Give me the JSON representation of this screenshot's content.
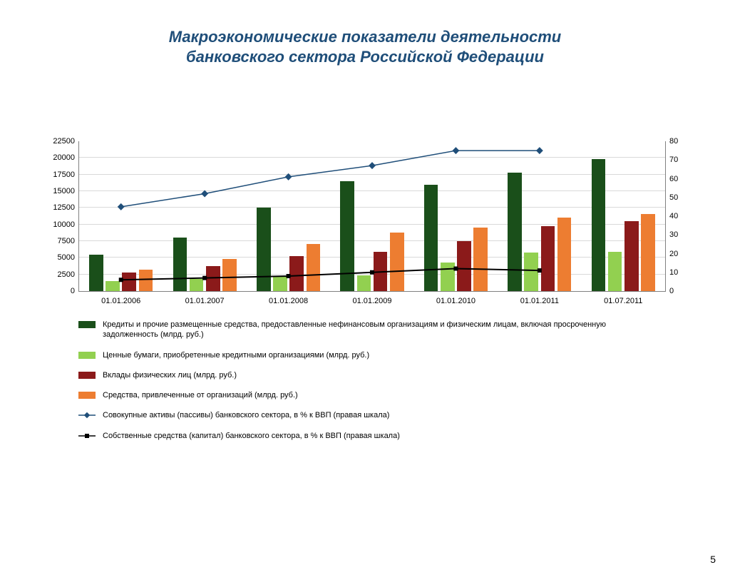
{
  "title_line1": "Макроэкономические показатели деятельности",
  "title_line2": "банковского сектора Российской Федерации",
  "title_color": "#1f4e79",
  "title_fontsize": 22,
  "page_number": "5",
  "chart": {
    "type": "bar+line-combo",
    "background_color": "#ffffff",
    "grid_color": "#d9d9d9",
    "axis_color": "#808080",
    "categories": [
      "01.01.2006",
      "01.01.2007",
      "01.01.2008",
      "01.01.2009",
      "01.01.2010",
      "01.01.2011",
      "01.07.2011"
    ],
    "y_left": {
      "min": 0,
      "max": 22500,
      "step": 2500,
      "label_fontsize": 11
    },
    "y_right": {
      "min": 0,
      "max": 80,
      "step": 10,
      "label_fontsize": 11
    },
    "bar_series": [
      {
        "key": "credits",
        "color": "#1a4f1a",
        "values": [
          5500,
          8000,
          12500,
          16500,
          16000,
          17800,
          19800
        ]
      },
      {
        "key": "securities",
        "color": "#92d050",
        "values": [
          1500,
          1800,
          2300,
          2400,
          4300,
          5800,
          5900
        ]
      },
      {
        "key": "deposits",
        "color": "#8b1a1a",
        "values": [
          2800,
          3800,
          5200,
          5900,
          7500,
          9800,
          10500
        ]
      },
      {
        "key": "org_funds",
        "color": "#ed7d31",
        "values": [
          3200,
          4800,
          7100,
          8800,
          9500,
          11000,
          11600
        ]
      }
    ],
    "line_series": [
      {
        "key": "total_assets_pct",
        "color": "#1f4e79",
        "marker": "diamond",
        "marker_size": 7,
        "line_width": 1.5,
        "values": [
          45,
          52,
          61,
          67,
          75,
          75,
          null
        ]
      },
      {
        "key": "equity_pct",
        "color": "#000000",
        "marker": "square",
        "marker_size": 6,
        "line_width": 2,
        "values": [
          6,
          7,
          8,
          10,
          12,
          11,
          null
        ]
      }
    ],
    "bar_gap_pct": 0.04,
    "group_pad_pct": 0.12
  },
  "legend": {
    "fontsize": 11,
    "items": [
      {
        "type": "swatch",
        "color": "#1a4f1a",
        "label": "Кредиты и прочие размещенные средства, предоставленные нефинансовым организациям и физическим лицам, включая просроченную задолженность (млрд. руб.)"
      },
      {
        "type": "swatch",
        "color": "#92d050",
        "label": "Ценные бумаги, приобретенные кредитными организациями (млрд. руб.)"
      },
      {
        "type": "swatch",
        "color": "#8b1a1a",
        "label": "Вклады физических лиц (млрд. руб.)"
      },
      {
        "type": "swatch",
        "color": "#ed7d31",
        "label": "Средства, привлеченные от организаций (млрд. руб.)"
      },
      {
        "type": "line",
        "color": "#1f4e79",
        "marker": "diamond",
        "label": "Совокупные активы (пассивы) банковского сектора, в % к ВВП (правая шкала)"
      },
      {
        "type": "line",
        "color": "#000000",
        "marker": "square",
        "label": "Собственные средства (капитал) банковского сектора, в % к ВВП (правая шкала)"
      }
    ]
  }
}
